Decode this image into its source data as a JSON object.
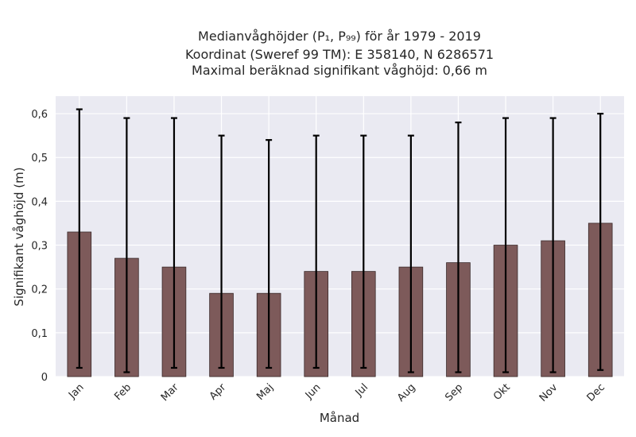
{
  "chart_data": {
    "type": "bar",
    "title_lines": [
      "Medianvåghöjder (P₁, P₉₉) för år 1979 - 2019",
      "Koordinat (Sweref 99 TM): E 358140, N 6286571",
      "Maximal beräknad signifikant våghöjd: 0,66 m"
    ],
    "xlabel": "Månad",
    "ylabel": "Signifikant våghöjd (m)",
    "categories": [
      "Jan",
      "Feb",
      "Mar",
      "Apr",
      "Maj",
      "Jun",
      "Jul",
      "Aug",
      "Sep",
      "Okt",
      "Nov",
      "Dec"
    ],
    "values": [
      0.33,
      0.27,
      0.25,
      0.19,
      0.19,
      0.24,
      0.24,
      0.25,
      0.26,
      0.3,
      0.31,
      0.35
    ],
    "p1": [
      0.02,
      0.01,
      0.02,
      0.02,
      0.02,
      0.02,
      0.02,
      0.01,
      0.01,
      0.01,
      0.01,
      0.015
    ],
    "p99": [
      0.61,
      0.59,
      0.59,
      0.55,
      0.54,
      0.55,
      0.55,
      0.55,
      0.58,
      0.59,
      0.59,
      0.6
    ],
    "yticks": [
      0,
      0.1,
      0.2,
      0.3,
      0.4,
      0.5,
      0.6
    ],
    "ytick_labels": [
      "0",
      "0,1",
      "0,2",
      "0,3",
      "0,4",
      "0,5",
      "0,6"
    ],
    "ylim": [
      0,
      0.64
    ],
    "grid": true,
    "colors": {
      "bar_fill": "#7d5a5a",
      "bar_edge": "#3a2a2a",
      "error_bar": "#000000",
      "plot_bg": "#eaeaf2",
      "grid": "#ffffff"
    }
  }
}
